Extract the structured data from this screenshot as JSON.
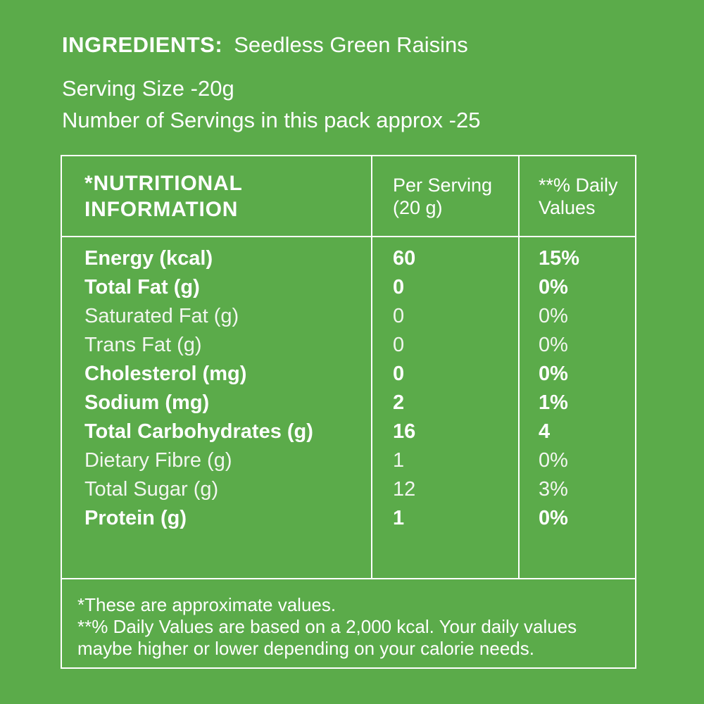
{
  "colors": {
    "background": "#5BAB4A",
    "text": "#FFFFFF",
    "border": "#FFFFFF"
  },
  "header": {
    "ingredients_label": "INGREDIENTS:",
    "ingredients_value": "Seedless Green Raisins",
    "serving_size": "Serving Size -20g",
    "servings_count": "Number of Servings in this pack approx -25"
  },
  "table": {
    "columns": [
      {
        "name": "nutritional-information",
        "lines": [
          "*NUTRITIONAL",
          "INFORMATION"
        ],
        "bold": true
      },
      {
        "name": "per-serving",
        "lines": [
          "Per Serving",
          "(20 g)"
        ],
        "bold": false
      },
      {
        "name": "daily-values",
        "lines": [
          "**% Daily",
          "Values"
        ],
        "bold": false
      }
    ],
    "rows": [
      {
        "label": "Energy (kcal)",
        "per_serving": "60",
        "daily_value": "15%",
        "bold": true
      },
      {
        "label": "Total Fat (g)",
        "per_serving": "0",
        "daily_value": "0%",
        "bold": true
      },
      {
        "label": "Saturated Fat (g)",
        "per_serving": "0",
        "daily_value": "0%",
        "bold": false
      },
      {
        "label": "Trans Fat (g)",
        "per_serving": "0",
        "daily_value": "0%",
        "bold": false
      },
      {
        "label": "Cholesterol (mg)",
        "per_serving": "0",
        "daily_value": "0%",
        "bold": true
      },
      {
        "label": "Sodium (mg)",
        "per_serving": "2",
        "daily_value": "1%",
        "bold": true
      },
      {
        "label": "Total Carbohydrates (g)",
        "per_serving": "16",
        "daily_value": "4",
        "bold": true
      },
      {
        "label": "Dietary Fibre (g)",
        "per_serving": "1",
        "daily_value": "0%",
        "bold": false
      },
      {
        "label": "Total Sugar (g)",
        "per_serving": "12",
        "daily_value": "3%",
        "bold": false
      },
      {
        "label": "Protein (g)",
        "per_serving": "1",
        "daily_value": "0%",
        "bold": true
      }
    ],
    "footnotes": [
      "*These are approximate values.",
      "**% Daily Values are based on a 2,000 kcal. Your daily values maybe higher or lower depending on your calorie needs."
    ]
  }
}
